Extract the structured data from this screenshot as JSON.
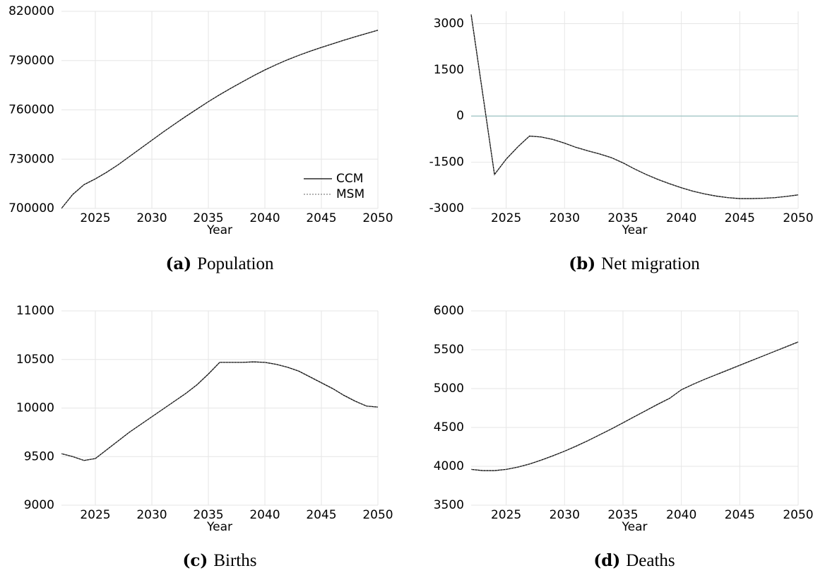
{
  "chart_data": [
    {
      "type": "line",
      "caption_label": "(a)",
      "caption": "Population",
      "xlabel": "Year",
      "x": [
        2022,
        2023,
        2024,
        2025,
        2026,
        2027,
        2028,
        2029,
        2030,
        2031,
        2032,
        2033,
        2034,
        2035,
        2036,
        2037,
        2038,
        2039,
        2040,
        2041,
        2042,
        2043,
        2044,
        2045,
        2046,
        2047,
        2048,
        2049,
        2050
      ],
      "series": [
        {
          "name": "CCM",
          "color": "#000000",
          "style": "solid",
          "values": [
            700000,
            708500,
            714500,
            718000,
            722000,
            726500,
            731500,
            736500,
            741500,
            746500,
            751300,
            756000,
            760500,
            765000,
            769200,
            773200,
            777000,
            780800,
            784300,
            787500,
            790500,
            793200,
            795700,
            798000,
            800200,
            802400,
            804500,
            806500,
            808500
          ]
        },
        {
          "name": "MSM",
          "color": "#666666",
          "style": "dotted",
          "values": [
            700000,
            708500,
            714500,
            718000,
            722000,
            726500,
            731500,
            736500,
            741500,
            746500,
            751300,
            756000,
            760500,
            765000,
            769200,
            773200,
            777000,
            780800,
            784300,
            787500,
            790500,
            793200,
            795700,
            798000,
            800200,
            802400,
            804500,
            806500,
            808500
          ]
        }
      ],
      "xlim": [
        2022,
        2050
      ],
      "xticks": [
        2025,
        2030,
        2035,
        2040,
        2045,
        2050
      ],
      "ylim": [
        700000,
        820000
      ],
      "yticks": [
        700000,
        730000,
        760000,
        790000,
        820000
      ],
      "grid": true,
      "legend": "lower right"
    },
    {
      "type": "line",
      "caption_label": "(b)",
      "caption": "Net migration",
      "xlabel": "Year",
      "x": [
        2022,
        2023,
        2024,
        2025,
        2026,
        2027,
        2028,
        2029,
        2030,
        2031,
        2032,
        2033,
        2034,
        2035,
        2036,
        2037,
        2038,
        2039,
        2040,
        2041,
        2042,
        2043,
        2044,
        2045,
        2046,
        2047,
        2048,
        2049,
        2050
      ],
      "series": [
        {
          "color": "#000000",
          "style": "solid",
          "values": [
            3300,
            700,
            -1900,
            -1400,
            -1000,
            -650,
            -680,
            -760,
            -880,
            -1020,
            -1130,
            -1230,
            -1350,
            -1520,
            -1720,
            -1900,
            -2060,
            -2200,
            -2330,
            -2440,
            -2530,
            -2600,
            -2650,
            -2680,
            -2680,
            -2670,
            -2650,
            -2610,
            -2560
          ]
        },
        {
          "color": "#666666",
          "style": "dotted",
          "values": [
            3300,
            700,
            -1900,
            -1400,
            -1000,
            -650,
            -680,
            -760,
            -880,
            -1020,
            -1130,
            -1230,
            -1350,
            -1520,
            -1720,
            -1900,
            -2060,
            -2200,
            -2330,
            -2440,
            -2530,
            -2600,
            -2650,
            -2680,
            -2680,
            -2670,
            -2650,
            -2610,
            -2560
          ]
        }
      ],
      "xlim": [
        2022,
        2050
      ],
      "xticks": [
        2025,
        2030,
        2035,
        2040,
        2045,
        2050
      ],
      "ylim": [
        -3000,
        3400
      ],
      "yticks": [
        -3000,
        -1500,
        0,
        1500,
        3000
      ],
      "grid": true,
      "hline": {
        "value": 0,
        "color": "#9cc3c3"
      }
    },
    {
      "type": "line",
      "caption_label": "(c)",
      "caption": "Births",
      "xlabel": "Year",
      "x": [
        2022,
        2023,
        2024,
        2025,
        2026,
        2027,
        2028,
        2029,
        2030,
        2031,
        2032,
        2033,
        2034,
        2035,
        2036,
        2037,
        2038,
        2039,
        2040,
        2041,
        2042,
        2043,
        2044,
        2045,
        2046,
        2047,
        2048,
        2049,
        2050
      ],
      "series": [
        {
          "color": "#000000",
          "style": "solid",
          "values": [
            9530,
            9500,
            9460,
            9480,
            9570,
            9660,
            9750,
            9830,
            9910,
            9990,
            10070,
            10150,
            10240,
            10350,
            10470,
            10470,
            10470,
            10475,
            10470,
            10450,
            10420,
            10380,
            10320,
            10260,
            10200,
            10130,
            10070,
            10020,
            10010
          ]
        },
        {
          "color": "#666666",
          "style": "dotted",
          "values": [
            9530,
            9500,
            9460,
            9480,
            9570,
            9660,
            9750,
            9830,
            9910,
            9990,
            10070,
            10150,
            10240,
            10350,
            10470,
            10470,
            10470,
            10475,
            10470,
            10450,
            10420,
            10380,
            10320,
            10260,
            10200,
            10130,
            10070,
            10020,
            10010
          ]
        }
      ],
      "xlim": [
        2022,
        2050
      ],
      "xticks": [
        2025,
        2030,
        2035,
        2040,
        2045,
        2050
      ],
      "ylim": [
        9000,
        11000
      ],
      "yticks": [
        9000,
        9500,
        10000,
        10500,
        11000
      ],
      "grid": true
    },
    {
      "type": "line",
      "caption_label": "(d)",
      "caption": "Deaths",
      "xlabel": "Year",
      "x": [
        2022,
        2023,
        2024,
        2025,
        2026,
        2027,
        2028,
        2029,
        2030,
        2031,
        2032,
        2033,
        2034,
        2035,
        2036,
        2037,
        2038,
        2039,
        2040,
        2041,
        2042,
        2043,
        2044,
        2045,
        2046,
        2047,
        2048,
        2049,
        2050
      ],
      "series": [
        {
          "color": "#000000",
          "style": "solid",
          "values": [
            3960,
            3945,
            3945,
            3960,
            3990,
            4030,
            4080,
            4135,
            4195,
            4260,
            4330,
            4405,
            4480,
            4560,
            4640,
            4720,
            4800,
            4875,
            4985,
            5055,
            5120,
            5180,
            5240,
            5300,
            5360,
            5420,
            5480,
            5540,
            5600
          ]
        },
        {
          "color": "#666666",
          "style": "dotted",
          "values": [
            3960,
            3945,
            3945,
            3960,
            3990,
            4030,
            4080,
            4135,
            4195,
            4260,
            4330,
            4405,
            4480,
            4560,
            4640,
            4720,
            4800,
            4875,
            4985,
            5055,
            5120,
            5180,
            5240,
            5300,
            5360,
            5420,
            5480,
            5540,
            5600
          ]
        }
      ],
      "xlim": [
        2022,
        2050
      ],
      "xticks": [
        2025,
        2030,
        2035,
        2040,
        2045,
        2050
      ],
      "ylim": [
        3500,
        6000
      ],
      "yticks": [
        3500,
        4000,
        4500,
        5000,
        5500,
        6000
      ],
      "grid": true
    }
  ]
}
